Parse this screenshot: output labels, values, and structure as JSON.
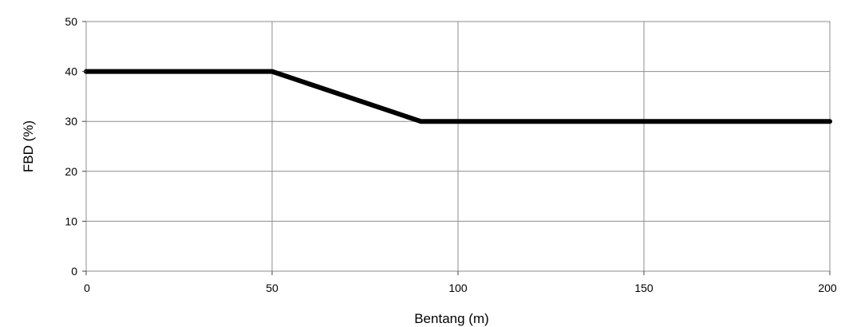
{
  "chart_data": {
    "type": "line",
    "title": "",
    "xlabel": "Bentang (m)",
    "ylabel": "FBD (%)",
    "xlim": [
      0,
      200
    ],
    "ylim": [
      0,
      50
    ],
    "x_ticks": [
      0,
      50,
      100,
      150,
      200
    ],
    "y_ticks": [
      0,
      10,
      20,
      30,
      40,
      50
    ],
    "x_tick_labels": [
      "0",
      "50",
      "100",
      "150",
      "200"
    ],
    "y_tick_labels": [
      "0",
      "10",
      "20",
      "30",
      "40",
      "50"
    ],
    "grid": true,
    "legend": "none",
    "series": [
      {
        "x": [
          0,
          50,
          90,
          200
        ],
        "y": [
          40,
          40,
          30,
          30
        ],
        "color": "#000000"
      }
    ]
  }
}
